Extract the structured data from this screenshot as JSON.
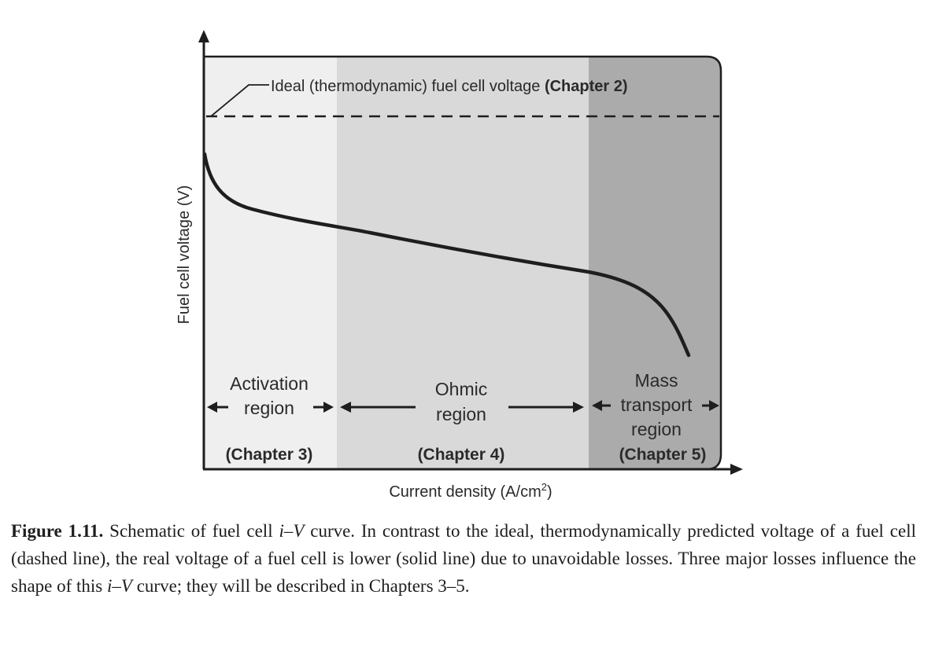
{
  "diagram": {
    "ideal_label": "Ideal (thermodynamic) fuel cell voltage",
    "ideal_chapter": "(Chapter 2)",
    "y_axis_label": "Fuel cell voltage (V)",
    "x_axis_label_main": "Current density (A/cm",
    "x_axis_label_sup": "2",
    "x_axis_label_end": ")",
    "regions": [
      {
        "line1": "Activation",
        "line2": "region",
        "chapter": "(Chapter 3)"
      },
      {
        "line1": "Ohmic",
        "line2": "region",
        "chapter": "(Chapter 4)"
      },
      {
        "line1": "Mass",
        "line2": "transport",
        "line3": "region",
        "chapter": "(Chapter 5)"
      }
    ],
    "colors": {
      "activation_bg": "#efefef",
      "ohmic_bg": "#d9d9d9",
      "mass_bg": "#ababab",
      "ink": "#1e1e1e"
    }
  },
  "caption": {
    "figure_number": "Figure 1.11.",
    "p1": " Schematic of fuel cell ",
    "iv1": "i–V",
    "p2": " curve. In contrast to the ideal, thermodynamically predicted voltage of a fuel cell (dashed line), the real voltage of a fuel cell is lower (solid line) due to unavoidable losses. Three major losses influence the shape of this ",
    "iv2": "i–V",
    "p3": " curve; they will be described in Chapters 3–5."
  }
}
